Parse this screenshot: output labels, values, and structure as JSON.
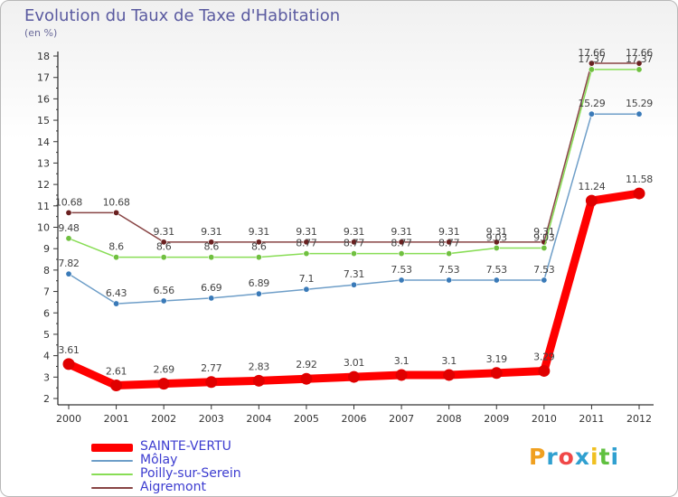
{
  "title": "Evolution du Taux de Taxe d'Habitation",
  "unit": "(en %)",
  "logo": {
    "letters": [
      "P",
      "r",
      "o",
      "x",
      "i",
      "t",
      "i"
    ],
    "colors": [
      "#f0a020",
      "#30a0d0",
      "#f04848",
      "#30a0d0",
      "#f0c020",
      "#60c040",
      "#30a0d0"
    ]
  },
  "chart_data": {
    "type": "line",
    "title": "Evolution du Taux de Taxe d'Habitation",
    "subtitle": "(en %)",
    "x": [
      "2000",
      "2001",
      "2002",
      "2003",
      "2004",
      "2005",
      "2006",
      "2007",
      "2008",
      "2009",
      "2010",
      "2011",
      "2012"
    ],
    "yticks": [
      "2",
      "3",
      "4",
      "5",
      "6",
      "7",
      "8",
      "9",
      "10",
      "11",
      "12",
      "13",
      "14",
      "15",
      "16",
      "17",
      "18"
    ],
    "ylim": [
      2,
      18
    ],
    "grid": false,
    "legend_position": "bottom-left",
    "series": [
      {
        "name": "SAINTE-VERTU",
        "color": "#ff0000",
        "marker": "#e00000",
        "values": [
          3.61,
          2.61,
          2.69,
          2.77,
          2.83,
          2.92,
          3.01,
          3.1,
          3.1,
          3.19,
          3.29,
          11.24,
          11.58
        ],
        "labels": [
          "3.61",
          "2.61",
          "2.69",
          "2.77",
          "2.83",
          "2.92",
          "3.01",
          "3.1",
          "3.1",
          "3.19",
          "3.29",
          "11.24",
          "11.58"
        ]
      },
      {
        "name": "Môlay",
        "color": "#6e9ec8",
        "marker": "#3a7ab8",
        "values": [
          7.82,
          6.43,
          6.56,
          6.69,
          6.89,
          7.1,
          7.31,
          7.53,
          7.53,
          7.53,
          7.53,
          15.29,
          15.29
        ],
        "labels": [
          "7.82",
          "6.43",
          "6.56",
          "6.69",
          "6.89",
          "7.1",
          "7.31",
          "7.53",
          "7.53",
          "7.53",
          "7.53",
          "15.29",
          "15.29"
        ]
      },
      {
        "name": "Poilly-sur-Serein",
        "color": "#88dd55",
        "marker": "#70c040",
        "values": [
          9.48,
          8.6,
          8.6,
          8.6,
          8.6,
          8.77,
          8.77,
          8.77,
          8.77,
          9.03,
          9.03,
          17.37,
          17.37
        ],
        "labels": [
          "9.48",
          "8.6",
          "8.6",
          "8.6",
          "8.6",
          "8.77",
          "8.77",
          "8.77",
          "8.77",
          "9.03",
          "9.03",
          "17.37",
          "17.37"
        ]
      },
      {
        "name": "Aigremont",
        "color": "#884444",
        "marker": "#6a2020",
        "values": [
          10.68,
          10.68,
          9.31,
          9.31,
          9.31,
          9.31,
          9.31,
          9.31,
          9.31,
          9.31,
          9.31,
          17.66,
          17.66
        ],
        "labels": [
          "10.68",
          "10.68",
          "9.31",
          "9.31",
          "9.31",
          "9.31",
          "9.31",
          "9.31",
          "9.31",
          "9.31",
          "9.31",
          "17.66",
          "17.66"
        ]
      }
    ]
  }
}
